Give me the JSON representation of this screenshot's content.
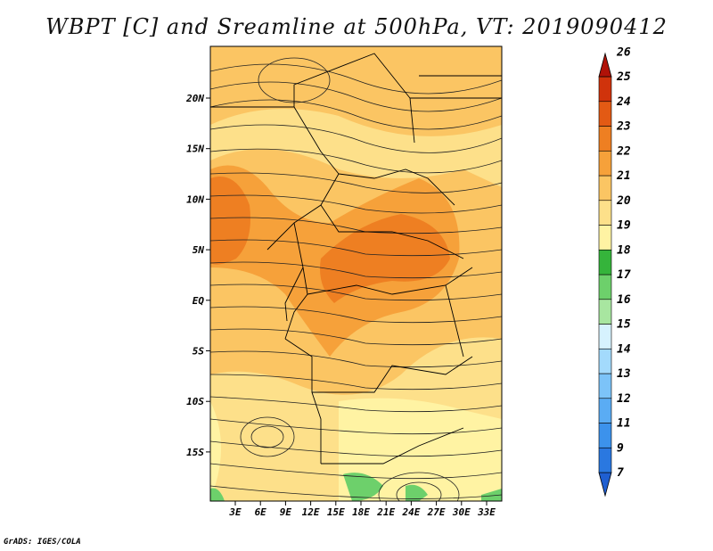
{
  "title": "WBPT [C] and Sreamline at 500hPa, VT: 2019090412",
  "credit": "GrADS: IGES/COLA",
  "lat_labels": [
    "20N",
    "15N",
    "10N",
    "5N",
    "EQ",
    "5S",
    "10S",
    "15S"
  ],
  "lon_labels": [
    "3E",
    "6E",
    "9E",
    "12E",
    "15E",
    "18E",
    "21E",
    "24E",
    "27E",
    "30E",
    "33E"
  ],
  "colorbar": {
    "levels": [
      "7",
      "9",
      "11",
      "12",
      "13",
      "14",
      "15",
      "16",
      "17",
      "18",
      "19",
      "20",
      "21",
      "22",
      "23",
      "24",
      "25",
      "26"
    ],
    "colors": [
      "#1f5fd1",
      "#2a78e0",
      "#3c92ec",
      "#5aacf4",
      "#7cc3f8",
      "#a3dafc",
      "#d6f2fe",
      "#a8e6a0",
      "#6dd06b",
      "#35b43b",
      "#fff3a3",
      "#fde08a",
      "#fbc563",
      "#f6a13a",
      "#ee7f22",
      "#e35a14",
      "#d0330c",
      "#b01208"
    ]
  }
}
